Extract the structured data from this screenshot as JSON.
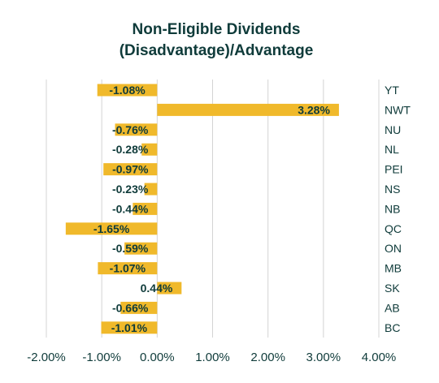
{
  "chart_data": {
    "type": "bar",
    "orientation": "horizontal",
    "title_lines": [
      "Non-Eligible Dividends",
      "(Disadvantage)/Advantage"
    ],
    "categories": [
      "YT",
      "NWT",
      "NU",
      "NL",
      "PEI",
      "NS",
      "NB",
      "QC",
      "ON",
      "MB",
      "SK",
      "AB",
      "BC"
    ],
    "values": [
      -1.08,
      3.28,
      -0.76,
      -0.28,
      -0.97,
      -0.23,
      -0.44,
      -1.65,
      -0.59,
      -1.07,
      0.44,
      -0.66,
      -1.01
    ],
    "data_labels": [
      "-1.08%",
      "3.28%",
      "-0.76%",
      "-0.28%",
      "-0.97%",
      "-0.23%",
      "-0.44%",
      "-1.65%",
      "-0.59%",
      "-1.07%",
      "0.44%",
      "-0.66%",
      "-1.01%"
    ],
    "x_ticks": [
      -2,
      -1,
      0,
      1,
      2,
      3,
      4
    ],
    "x_tick_labels": [
      "-2.00%",
      "-1.00%",
      "0.00%",
      "1.00%",
      "2.00%",
      "3.00%",
      "4.00%"
    ],
    "xlim": [
      -2,
      4
    ],
    "grid": true,
    "category_labels_side": "right",
    "bar_color": "#f0b92b",
    "text_color": "#0f3b3a",
    "grid_color": "#d4d4d4"
  }
}
